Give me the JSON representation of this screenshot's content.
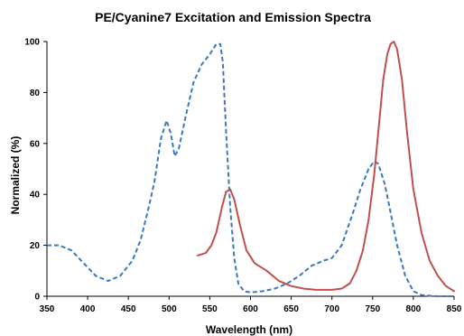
{
  "chart_data": {
    "type": "line",
    "title": "PE/Cyanine7 Excitation and Emission Spectra",
    "xlabel": "Wavelength (nm)",
    "ylabel": "Normalized (%)",
    "xlim": [
      350,
      850
    ],
    "ylim": [
      0,
      100
    ],
    "xticks": [
      350,
      400,
      450,
      500,
      550,
      600,
      650,
      700,
      750,
      800,
      850
    ],
    "yticks": [
      0,
      20,
      40,
      60,
      80,
      100
    ],
    "grid": false,
    "legend": "none",
    "series": [
      {
        "style": "dashed",
        "color": "#3a78c0",
        "x": [
          350,
          365,
          380,
          395,
          410,
          425,
          440,
          455,
          465,
          475,
          482,
          490,
          497,
          502,
          507,
          512,
          520,
          530,
          540,
          550,
          558,
          563,
          566,
          570,
          575,
          580,
          585,
          592,
          600,
          615,
          630,
          645,
          660,
          675,
          690,
          700,
          712,
          725,
          735,
          745,
          752,
          757,
          765,
          772,
          780,
          790,
          800,
          810,
          820,
          830,
          840,
          850
        ],
        "y": [
          20,
          20,
          18,
          13,
          8,
          6,
          8,
          14,
          22,
          35,
          45,
          62,
          69,
          64,
          55,
          58,
          70,
          84,
          91,
          95,
          99,
          99,
          92,
          65,
          35,
          15,
          5,
          2,
          1.5,
          2,
          3,
          5,
          8,
          12,
          14,
          15,
          20,
          32,
          42,
          50,
          53,
          52,
          44,
          33,
          20,
          8,
          2,
          0.5,
          0.2,
          0,
          0,
          0
        ]
      },
      {
        "style": "solid",
        "color": "#c0504d",
        "x": [
          535,
          545,
          552,
          558,
          565,
          570,
          575,
          580,
          587,
          595,
          605,
          620,
          635,
          650,
          665,
          680,
          700,
          712,
          722,
          730,
          738,
          745,
          752,
          758,
          763,
          768,
          772,
          776,
          780,
          786,
          792,
          800,
          810,
          820,
          830,
          840,
          850
        ],
        "y": [
          16,
          17,
          20,
          25,
          35,
          41,
          42,
          38,
          28,
          18,
          13,
          10,
          6,
          4,
          3,
          2.5,
          2.5,
          3,
          5,
          10,
          18,
          30,
          48,
          68,
          85,
          95,
          99,
          100,
          97,
          85,
          65,
          42,
          25,
          14,
          8,
          4,
          2
        ]
      }
    ]
  }
}
